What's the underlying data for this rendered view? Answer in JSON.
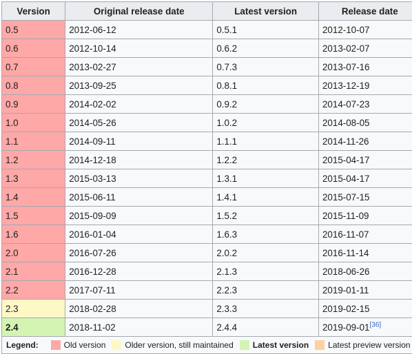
{
  "headers": [
    "Version",
    "Original release date",
    "Latest version",
    "Release date"
  ],
  "rows": [
    {
      "version": "0.5",
      "status": "old",
      "original": "2012-06-12",
      "latest": "0.5.1",
      "release": "2012-10-07"
    },
    {
      "version": "0.6",
      "status": "old",
      "original": "2012-10-14",
      "latest": "0.6.2",
      "release": "2013-02-07"
    },
    {
      "version": "0.7",
      "status": "old",
      "original": "2013-02-27",
      "latest": "0.7.3",
      "release": "2013-07-16"
    },
    {
      "version": "0.8",
      "status": "old",
      "original": "2013-09-25",
      "latest": "0.8.1",
      "release": "2013-12-19"
    },
    {
      "version": "0.9",
      "status": "old",
      "original": "2014-02-02",
      "latest": "0.9.2",
      "release": "2014-07-23"
    },
    {
      "version": "1.0",
      "status": "old",
      "original": "2014-05-26",
      "latest": "1.0.2",
      "release": "2014-08-05"
    },
    {
      "version": "1.1",
      "status": "old",
      "original": "2014-09-11",
      "latest": "1.1.1",
      "release": "2014-11-26"
    },
    {
      "version": "1.2",
      "status": "old",
      "original": "2014-12-18",
      "latest": "1.2.2",
      "release": "2015-04-17"
    },
    {
      "version": "1.3",
      "status": "old",
      "original": "2015-03-13",
      "latest": "1.3.1",
      "release": "2015-04-17"
    },
    {
      "version": "1.4",
      "status": "old",
      "original": "2015-06-11",
      "latest": "1.4.1",
      "release": "2015-07-15"
    },
    {
      "version": "1.5",
      "status": "old",
      "original": "2015-09-09",
      "latest": "1.5.2",
      "release": "2015-11-09"
    },
    {
      "version": "1.6",
      "status": "old",
      "original": "2016-01-04",
      "latest": "1.6.3",
      "release": "2016-11-07"
    },
    {
      "version": "2.0",
      "status": "old",
      "original": "2016-07-26",
      "latest": "2.0.2",
      "release": "2016-11-14"
    },
    {
      "version": "2.1",
      "status": "old",
      "original": "2016-12-28",
      "latest": "2.1.3",
      "release": "2018-06-26"
    },
    {
      "version": "2.2",
      "status": "old",
      "original": "2017-07-11",
      "latest": "2.2.3",
      "release": "2019-01-11"
    },
    {
      "version": "2.3",
      "status": "maint",
      "original": "2018-02-28",
      "latest": "2.3.3",
      "release": "2019-02-15"
    },
    {
      "version": "2.4",
      "status": "latest",
      "original": "2018-11-02",
      "latest": "2.4.4",
      "release": "2019-09-01",
      "ref": "[36]"
    }
  ],
  "legend": {
    "title": "Legend:",
    "items": [
      {
        "label": "Old version",
        "color": "#ffa8a8",
        "bold": false
      },
      {
        "label": "Older version, still maintained",
        "color": "#fef8c6",
        "bold": false
      },
      {
        "label": "Latest version",
        "color": "#d4f4b4",
        "bold": true
      },
      {
        "label": "Latest preview version",
        "color": "#fed1a0",
        "bold": false
      }
    ]
  },
  "colors": {
    "old": "#ffa8a8",
    "maint": "#fef8c6",
    "latest": "#d4f4b4",
    "preview": "#fed1a0",
    "header_bg": "#eaecf0",
    "border": "#a2a9b1"
  }
}
